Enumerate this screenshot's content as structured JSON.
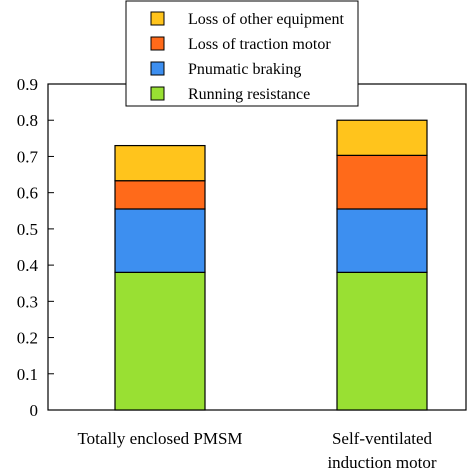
{
  "chart_data": {
    "type": "bar",
    "stacked": true,
    "title": "",
    "xlabel": "",
    "ylabel": "",
    "ylim": [
      0,
      0.9
    ],
    "yticks": [
      "0",
      "0.1",
      "0.2",
      "0.3",
      "0.4",
      "0.5",
      "0.6",
      "0.7",
      "0.8",
      "0.9"
    ],
    "grid": false,
    "legend_position": "top",
    "categories": [
      [
        "Totally enclosed PMSM"
      ],
      [
        "Self-ventilated",
        "induction motor"
      ]
    ],
    "series": [
      {
        "name": "Running resistance",
        "color": "#99e033",
        "values": [
          0.38,
          0.38
        ]
      },
      {
        "name": "Pnumatic braking",
        "color": "#3d8ff0",
        "values": [
          0.175,
          0.175
        ]
      },
      {
        "name": "Loss of traction motor",
        "color": "#ff6a1a",
        "values": [
          0.078,
          0.148
        ]
      },
      {
        "name": "Loss of other equipment",
        "color": "#ffc41c",
        "values": [
          0.097,
          0.097
        ]
      }
    ]
  }
}
